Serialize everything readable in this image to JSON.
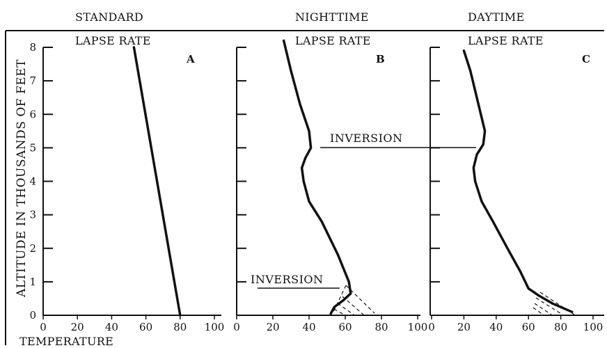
{
  "chart_data": {
    "type": "line",
    "ylabel": "ALTITUDE IN THOUSANDS OF FEET",
    "xlabel": "TEMPERATURE",
    "yticks": [
      "0",
      "1",
      "2",
      "3",
      "4",
      "5",
      "6",
      "7",
      "8"
    ],
    "panels": [
      {
        "heading_line1": "STANDARD",
        "heading_line2": "LAPSE RATE",
        "letter": "A",
        "xticks": [
          "0",
          "20",
          "40",
          "60",
          "80",
          "100"
        ],
        "xlim": [
          0,
          100
        ],
        "ylim": [
          0,
          8.3
        ],
        "series": [
          {
            "x": [
              53,
              80
            ],
            "y": [
              8.0,
              0.0
            ]
          }
        ]
      },
      {
        "heading_line1": "NIGHTTIME",
        "heading_line2": "LAPSE RATE",
        "letter": "B",
        "xticks": [
          "0",
          "20",
          "40",
          "60",
          "80",
          "100"
        ],
        "xlim": [
          0,
          100
        ],
        "ylim": [
          0,
          8.3
        ],
        "series": [
          {
            "x": [
              26,
              30,
              35,
              40,
              41,
              38,
              36,
              37,
              40,
              47,
              56,
              62,
              63,
              59,
              54,
              52
            ],
            "y": [
              8.2,
              7.3,
              6.3,
              5.5,
              5.0,
              4.7,
              4.4,
              4.0,
              3.4,
              2.8,
              1.8,
              1.0,
              0.65,
              0.45,
              0.25,
              0.05
            ]
          }
        ],
        "annotations": [
          {
            "text": "INVERSION"
          }
        ]
      },
      {
        "heading_line1": "DAYTIME",
        "heading_line2": "LAPSE RATE",
        "letter": "C",
        "xticks": [
          "0",
          "20",
          "40",
          "60",
          "80",
          "100"
        ],
        "xlim": [
          0,
          100
        ],
        "ylim": [
          0,
          8.3
        ],
        "series": [
          {
            "x": [
              20,
              24,
              29,
              33,
              32,
              28,
              26,
              27,
              31,
              38,
              47,
              55,
              60,
              66,
              75,
              87
            ],
            "y": [
              7.9,
              7.3,
              6.3,
              5.5,
              5.1,
              4.8,
              4.4,
              4.0,
              3.4,
              2.8,
              2.0,
              1.3,
              0.8,
              0.6,
              0.35,
              0.1
            ]
          }
        ],
        "annotations": [
          {
            "text": "INVERSION"
          }
        ]
      }
    ]
  }
}
